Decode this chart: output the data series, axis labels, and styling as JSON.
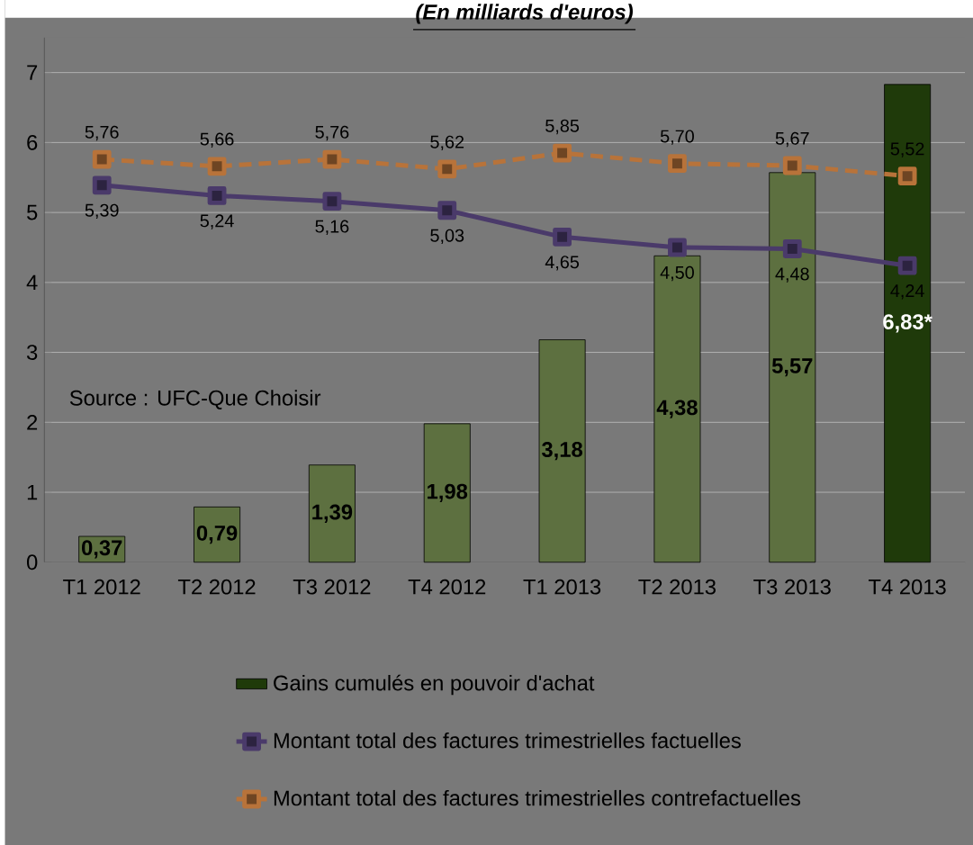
{
  "chart_data": {
    "type": "bar",
    "title": "(En milliards d'euros)",
    "categories": [
      "T1 2012",
      "T2 2012",
      "T3 2012",
      "T4 2012",
      "T1 2013",
      "T2 2013",
      "T3 2013",
      "T4 2013"
    ],
    "series": [
      {
        "name": "Gains cumulés en pouvoir d'achat",
        "color": "#1f3a0a",
        "colors": [
          "#5d7040",
          "#5d7040",
          "#5d7040",
          "#5d7040",
          "#5d7040",
          "#5d7040",
          "#5d7040",
          "#1f3a0a"
        ],
        "values": [
          0.37,
          0.79,
          1.39,
          1.98,
          3.18,
          4.38,
          5.57,
          6.83
        ],
        "value_labels": [
          "0,37",
          "0,79",
          "1,39",
          "1,98",
          "3,18",
          "4,38",
          "5,57",
          "6,83*"
        ]
      },
      {
        "name": "Montant total des factures trimestrielles factuelles",
        "type": "line",
        "color": "#4a3a6a",
        "line_style": "solid",
        "values": [
          5.39,
          5.24,
          5.16,
          5.03,
          4.65,
          4.5,
          4.48,
          4.24
        ],
        "value_labels": [
          "5,39",
          "5,24",
          "5,16",
          "5,03",
          "4,65",
          "4,50",
          "4,48",
          "4,24"
        ]
      },
      {
        "name": "Montant total des factures trimestrielles contrefactuelles",
        "type": "line",
        "color": "#b8733a",
        "line_style": "dashed",
        "values": [
          5.76,
          5.66,
          5.76,
          5.62,
          5.85,
          5.7,
          5.67,
          5.52
        ],
        "value_labels": [
          "5,76",
          "5,66",
          "5,76",
          "5,62",
          "5,85",
          "5,70",
          "5,67",
          "5,52"
        ]
      }
    ],
    "ylim": [
      0,
      7.5
    ],
    "yticks": [
      0,
      1,
      2,
      3,
      4,
      5,
      6,
      7
    ],
    "grid": "y",
    "legend": "bottom",
    "marker": "square",
    "annotations": [
      "Source : UFC-Que Choisir"
    ]
  }
}
